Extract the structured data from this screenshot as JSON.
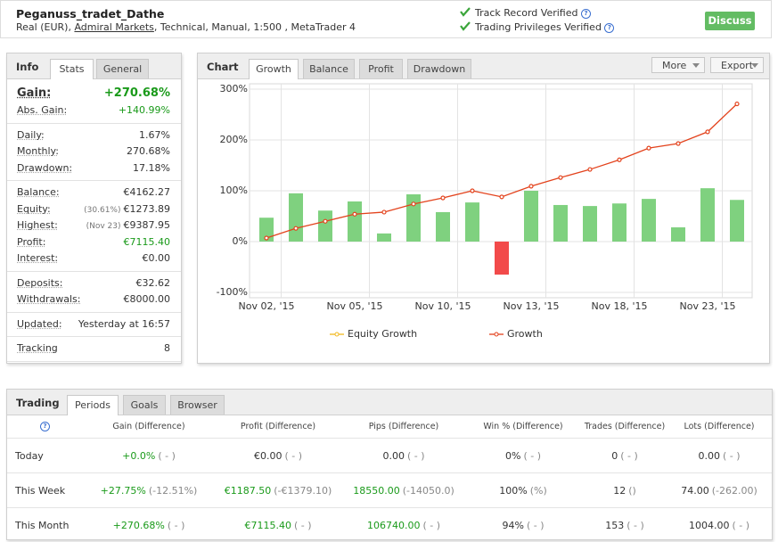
{
  "help_icon": "?",
  "header": {
    "name": "Peganuss_tradet_Dathe",
    "account_prefix": "Real (EUR), ",
    "broker": "Admiral Markets",
    "account_suffix": ", Technical, Manual, 1:500 , MetaTrader 4",
    "verified": [
      "Track Record Verified",
      "Trading Privileges Verified"
    ],
    "button": "Discuss"
  },
  "info": {
    "title": "Info",
    "tabs": [
      "Stats",
      "General"
    ],
    "groups": [
      [
        {
          "label": "Gain:",
          "value": "+270.68%",
          "color": "#1a9a1a",
          "big": true
        },
        {
          "label": "Abs. Gain:",
          "value": "+140.99%",
          "color": "#1a9a1a"
        }
      ],
      [
        {
          "label": "Daily:",
          "value": "1.67%"
        },
        {
          "label": "Monthly:",
          "value": "270.68%"
        },
        {
          "label": "Drawdown:",
          "value": "17.18%"
        }
      ],
      [
        {
          "label": "Balance:",
          "value": "€4162.27"
        },
        {
          "label": "Equity:",
          "note": "(30.61%)",
          "value": "€1273.89"
        },
        {
          "label": "Highest:",
          "note": "(Nov 23)",
          "value": "€9387.95"
        },
        {
          "label": "Profit:",
          "value": "€7115.40",
          "color": "#1a9a1a"
        },
        {
          "label": "Interest:",
          "value": "€0.00"
        }
      ],
      [
        {
          "label": "Deposits:",
          "value": "€32.62"
        },
        {
          "label": "Withdrawals:",
          "value": "€8000.00"
        }
      ],
      [
        {
          "label": "Updated:",
          "value": "Yesterday at 16:57"
        }
      ],
      [
        {
          "label": "Tracking",
          "value": "8"
        }
      ]
    ]
  },
  "chart_panel": {
    "title": "Chart",
    "tabs": [
      "Growth",
      "Balance",
      "Profit",
      "Drawdown"
    ],
    "buttons": [
      "More",
      "Export"
    ]
  },
  "chart_data": {
    "type": "bar",
    "categories": [
      "Nov 02, '15",
      null,
      null,
      "Nov 05, '15",
      null,
      null,
      "Nov 10, '15",
      null,
      null,
      "Nov 13, '15",
      null,
      null,
      "Nov 18, '15",
      null,
      null,
      "Nov 23, '15",
      null
    ],
    "values": [
      47,
      95,
      61,
      79,
      16,
      93,
      58,
      77,
      -65,
      100,
      72,
      70,
      75,
      84,
      28,
      105,
      82
    ],
    "color": "#7fd17f",
    "negative_color": "#f24a4a",
    "series": [
      {
        "name": "Equity Growth",
        "color": "#f2b81e",
        "values": [
          null,
          null,
          null,
          null,
          null,
          null,
          null,
          null,
          null,
          null,
          null,
          null,
          null,
          null,
          null,
          null,
          null
        ]
      },
      {
        "name": "Growth",
        "color": "#e3421c",
        "values": [
          7,
          26,
          40,
          54,
          58,
          74,
          86,
          100,
          88,
          109,
          126,
          142,
          161,
          184,
          193,
          216,
          271
        ]
      }
    ],
    "ylim": [
      -100,
      300
    ],
    "yticks": [
      {
        "value": -100,
        "label": "-100%"
      },
      {
        "value": 0,
        "label": "0%"
      },
      {
        "value": 100,
        "label": "100%"
      },
      {
        "value": 200,
        "label": "200%"
      },
      {
        "value": 300,
        "label": "300%"
      }
    ],
    "grid": true
  },
  "trading": {
    "title": "Trading",
    "tabs": [
      "Periods",
      "Goals",
      "Browser"
    ],
    "columns": [
      "Gain (Difference)",
      "Profit (Difference)",
      "Pips (Difference)",
      "Win % (Difference)",
      "Trades (Difference)",
      "Lots (Difference)"
    ],
    "rows": [
      {
        "label": "Today",
        "cells": [
          {
            "value": "+0.0%",
            "diff": "( - )",
            "color": "#1a9a1a"
          },
          {
            "value": "€0.00",
            "diff": "( - )"
          },
          {
            "value": "0.00",
            "diff": "( - )"
          },
          {
            "value": "0%",
            "diff": "( - )"
          },
          {
            "value": "0",
            "diff": "( - )"
          },
          {
            "value": "0.00",
            "diff": "( - )"
          }
        ]
      },
      {
        "label": "This Week",
        "cells": [
          {
            "value": "+27.75%",
            "diff": "(-12.51%)",
            "color": "#1a9a1a"
          },
          {
            "value": "€1187.50",
            "diff": "(-€1379.10)",
            "color": "#1a9a1a"
          },
          {
            "value": "18550.00",
            "diff": "(-14050.0)",
            "color": "#1a9a1a"
          },
          {
            "value": "100%",
            "diff": "(%)"
          },
          {
            "value": "12",
            "diff": "()"
          },
          {
            "value": "74.00",
            "diff": "(-262.00)"
          }
        ]
      },
      {
        "label": "This Month",
        "cells": [
          {
            "value": "+270.68%",
            "diff": "( - )",
            "color": "#1a9a1a"
          },
          {
            "value": "€7115.40",
            "diff": "( - )",
            "color": "#1a9a1a"
          },
          {
            "value": "106740.00",
            "diff": "( - )",
            "color": "#1a9a1a"
          },
          {
            "value": "94%",
            "diff": "( - )"
          },
          {
            "value": "153",
            "diff": "( - )"
          },
          {
            "value": "1004.00",
            "diff": "( - )"
          }
        ]
      }
    ]
  }
}
